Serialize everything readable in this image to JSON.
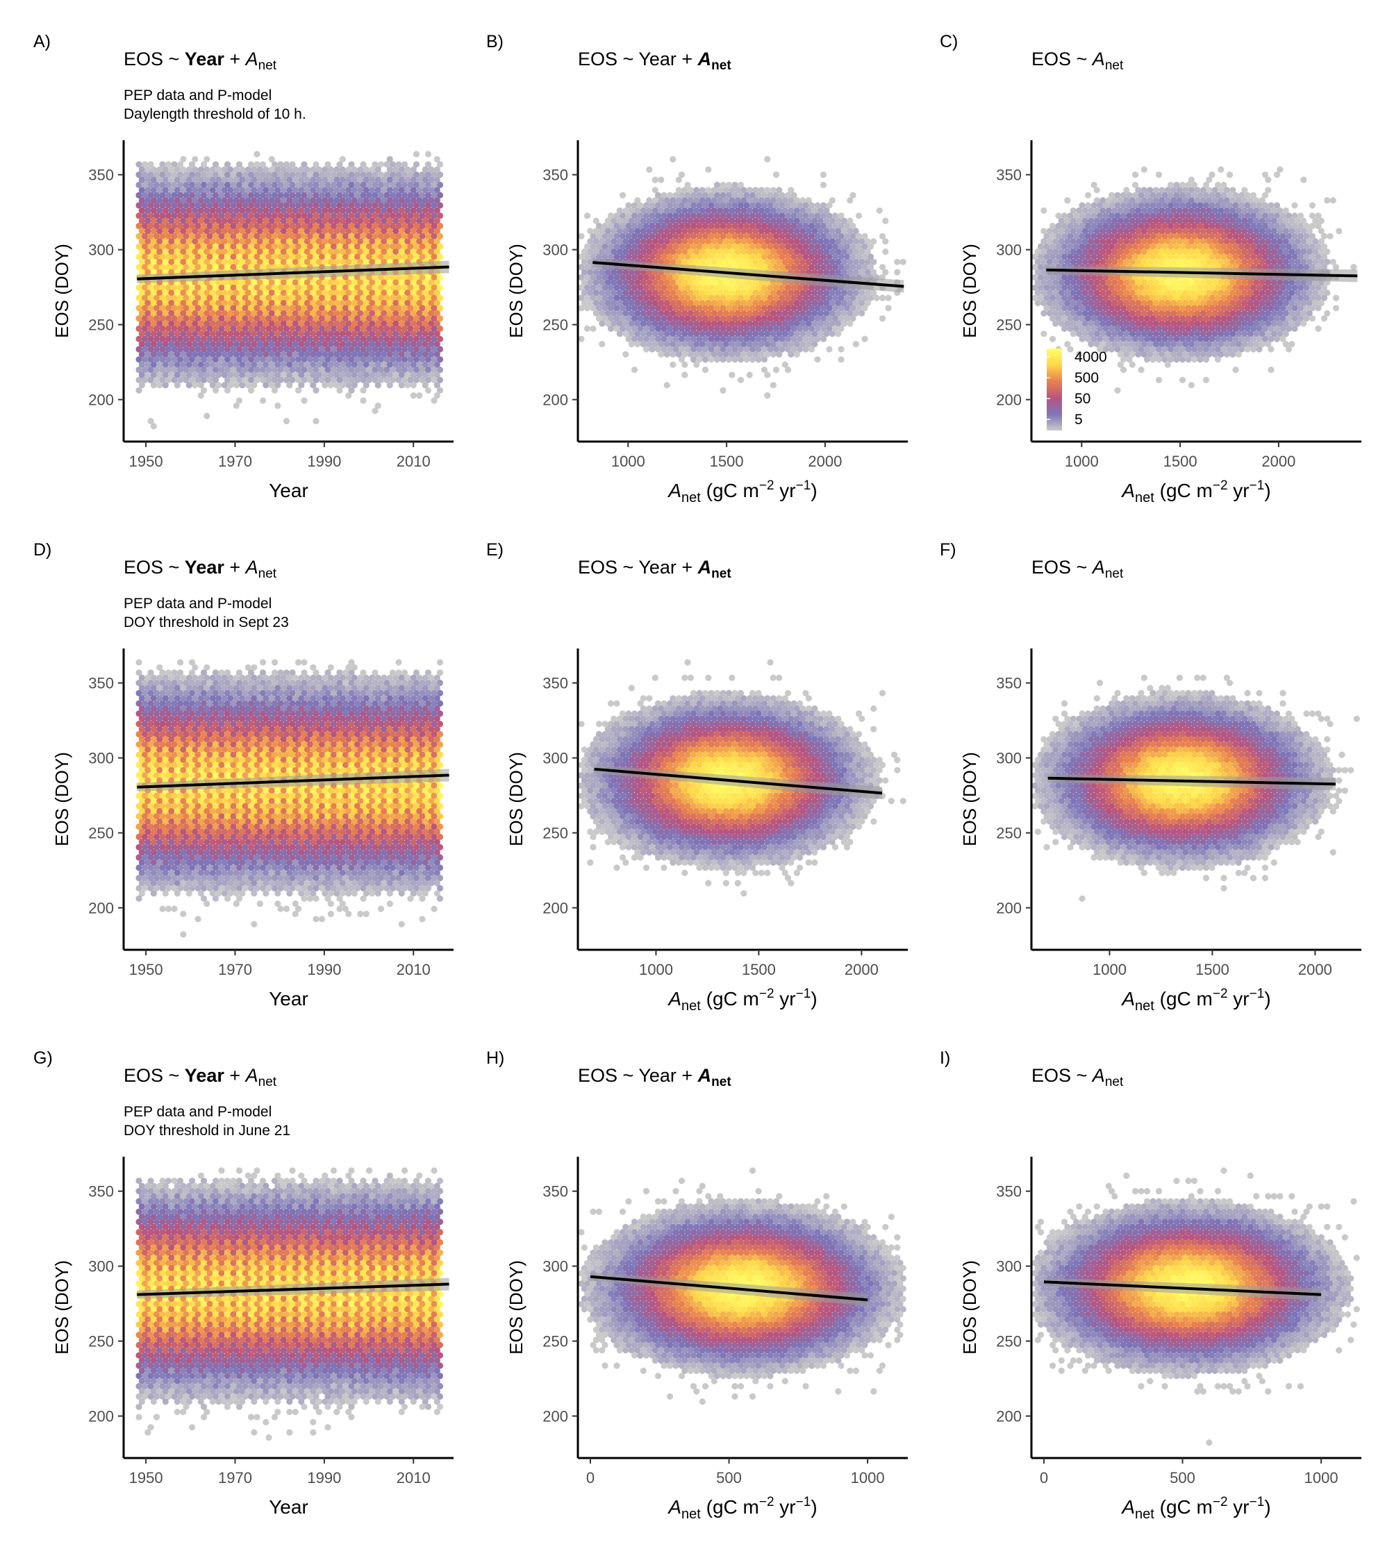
{
  "figure": {
    "colorbar": {
      "labels": [
        "4000",
        "500",
        "50",
        "5"
      ],
      "colors": [
        "#c9c9c9",
        "#7d75b8",
        "#b9547e",
        "#e9814f",
        "#ffd84a",
        "#ffff66"
      ]
    }
  },
  "chart_data": [
    {
      "panel": "A)",
      "type": "scatter",
      "render": "hexbin-density",
      "title": {
        "prefix": "EOS ~ ",
        "t1": "Year",
        "t1_bold": true,
        "mid": " + ",
        "t2": "A",
        "t2_sub": "net",
        "t2_bold": false
      },
      "subtitle": [
        "PEP data and P-model",
        "Daylength threshold of 10 h."
      ],
      "xlabel": "Year",
      "ylabel": "EOS (DOY)",
      "x_ticks": [
        1950,
        1970,
        1990,
        2010
      ],
      "y_ticks": [
        200,
        250,
        300,
        350
      ],
      "xlim": [
        1945,
        2019
      ],
      "ylim": [
        172,
        373
      ],
      "cloud": {
        "center": [
          1983,
          283
        ],
        "spread": [
          18,
          26
        ],
        "x_range": [
          1948,
          2016
        ]
      },
      "fit_line": {
        "x": [
          1948,
          2018
        ],
        "y": [
          280.5,
          288.5
        ]
      },
      "colorbar": false
    },
    {
      "panel": "B)",
      "type": "scatter",
      "render": "hexbin-density",
      "title": {
        "prefix": "EOS ~ ",
        "t1": "Year",
        "t1_bold": false,
        "mid": " + ",
        "t2": "A",
        "t2_sub": "net",
        "t2_bold": true
      },
      "subtitle": [],
      "xlabel": "A_net (gC m^-2 yr^-1)",
      "ylabel": "EOS (DOY)",
      "x_ticks": [
        1000,
        1500,
        2000
      ],
      "y_ticks": [
        200,
        250,
        300,
        350
      ],
      "xlim": [
        745,
        2420
      ],
      "ylim": [
        172,
        373
      ],
      "cloud": {
        "center": [
          1500,
          284
        ],
        "spread": [
          260,
          20
        ],
        "x_range": [
          800,
          2390
        ]
      },
      "fit_line": {
        "x": [
          820,
          2400
        ],
        "y": [
          291.5,
          275.5
        ]
      },
      "colorbar": false
    },
    {
      "panel": "C)",
      "type": "scatter",
      "render": "hexbin-density",
      "title": {
        "prefix": "EOS ~ ",
        "t1": "",
        "t1_bold": false,
        "mid": "",
        "t2": "A",
        "t2_sub": "net",
        "t2_bold": false
      },
      "subtitle": [],
      "xlabel": "A_net (gC m^-2 yr^-1)",
      "ylabel": "EOS (DOY)",
      "x_ticks": [
        1000,
        1500,
        2000
      ],
      "y_ticks": [
        200,
        250,
        300,
        350
      ],
      "xlim": [
        745,
        2420
      ],
      "ylim": [
        172,
        373
      ],
      "cloud": {
        "center": [
          1500,
          284
        ],
        "spread": [
          260,
          20
        ],
        "x_range": [
          800,
          2390
        ]
      },
      "fit_line": {
        "x": [
          820,
          2400
        ],
        "y": [
          286.5,
          282.5
        ]
      },
      "colorbar": true
    },
    {
      "panel": "D)",
      "type": "scatter",
      "render": "hexbin-density",
      "title": {
        "prefix": "EOS ~ ",
        "t1": "Year",
        "t1_bold": true,
        "mid": " + ",
        "t2": "A",
        "t2_sub": "net",
        "t2_bold": false
      },
      "subtitle": [
        "PEP data and P-model",
        "DOY threshold in Sept 23"
      ],
      "xlabel": "Year",
      "ylabel": "EOS (DOY)",
      "x_ticks": [
        1950,
        1970,
        1990,
        2010
      ],
      "y_ticks": [
        200,
        250,
        300,
        350
      ],
      "xlim": [
        1945,
        2019
      ],
      "ylim": [
        172,
        373
      ],
      "cloud": {
        "center": [
          1983,
          283
        ],
        "spread": [
          18,
          26
        ],
        "x_range": [
          1948,
          2016
        ]
      },
      "fit_line": {
        "x": [
          1948,
          2018
        ],
        "y": [
          280.5,
          288.5
        ]
      },
      "colorbar": false
    },
    {
      "panel": "E)",
      "type": "scatter",
      "render": "hexbin-density",
      "title": {
        "prefix": "EOS ~ ",
        "t1": "Year",
        "t1_bold": false,
        "mid": " + ",
        "t2": "A",
        "t2_sub": "net",
        "t2_bold": true
      },
      "subtitle": [],
      "xlabel": "A_net (gC m^-2 yr^-1)",
      "ylabel": "EOS (DOY)",
      "x_ticks": [
        1000,
        1500,
        2000
      ],
      "y_ticks": [
        200,
        250,
        300,
        350
      ],
      "xlim": [
        620,
        2225
      ],
      "ylim": [
        172,
        373
      ],
      "cloud": {
        "center": [
          1350,
          285
        ],
        "spread": [
          250,
          20
        ],
        "x_range": [
          680,
          2100
        ]
      },
      "fit_line": {
        "x": [
          700,
          2100
        ],
        "y": [
          292.5,
          276.5
        ]
      },
      "colorbar": false
    },
    {
      "panel": "F)",
      "type": "scatter",
      "render": "hexbin-density",
      "title": {
        "prefix": "EOS ~ ",
        "t1": "",
        "t1_bold": false,
        "mid": "",
        "t2": "A",
        "t2_sub": "net",
        "t2_bold": false
      },
      "subtitle": [],
      "xlabel": "A_net (gC m^-2 yr^-1)",
      "ylabel": "EOS (DOY)",
      "x_ticks": [
        1000,
        1500,
        2000
      ],
      "y_ticks": [
        200,
        250,
        300,
        350
      ],
      "xlim": [
        620,
        2225
      ],
      "ylim": [
        172,
        373
      ],
      "cloud": {
        "center": [
          1350,
          285
        ],
        "spread": [
          250,
          20
        ],
        "x_range": [
          680,
          2100
        ]
      },
      "fit_line": {
        "x": [
          700,
          2100
        ],
        "y": [
          286.5,
          282.5
        ]
      },
      "colorbar": false
    },
    {
      "panel": "G)",
      "type": "scatter",
      "render": "hexbin-density",
      "title": {
        "prefix": "EOS ~ ",
        "t1": "Year",
        "t1_bold": true,
        "mid": " + ",
        "t2": "A",
        "t2_sub": "net",
        "t2_bold": false
      },
      "subtitle": [
        "PEP data and P-model",
        "DOY threshold in June 21"
      ],
      "xlabel": "Year",
      "ylabel": "EOS (DOY)",
      "x_ticks": [
        1950,
        1970,
        1990,
        2010
      ],
      "y_ticks": [
        200,
        250,
        300,
        350
      ],
      "xlim": [
        1945,
        2019
      ],
      "ylim": [
        172,
        373
      ],
      "cloud": {
        "center": [
          1983,
          283
        ],
        "spread": [
          18,
          26
        ],
        "x_range": [
          1948,
          2016
        ]
      },
      "fit_line": {
        "x": [
          1948,
          2018
        ],
        "y": [
          281,
          288
        ]
      },
      "colorbar": false
    },
    {
      "panel": "H)",
      "type": "scatter",
      "render": "hexbin-density",
      "title": {
        "prefix": "EOS ~ ",
        "t1": "Year",
        "t1_bold": false,
        "mid": " + ",
        "t2": "A",
        "t2_sub": "net",
        "t2_bold": true
      },
      "subtitle": [],
      "xlabel": "A_net (gC m^-2 yr^-1)",
      "ylabel": "EOS (DOY)",
      "x_ticks": [
        0,
        500,
        1000
      ],
      "y_ticks": [
        200,
        250,
        300,
        350
      ],
      "xlim": [
        -45,
        1145
      ],
      "ylim": [
        172,
        373
      ],
      "cloud": {
        "center": [
          550,
          285
        ],
        "spread": [
          200,
          20
        ],
        "x_range": [
          0,
          1100
        ]
      },
      "fit_line": {
        "x": [
          0,
          1000
        ],
        "y": [
          293,
          277.5
        ]
      },
      "colorbar": false
    },
    {
      "panel": "I)",
      "type": "scatter",
      "render": "hexbin-density",
      "title": {
        "prefix": "EOS ~ ",
        "t1": "",
        "t1_bold": false,
        "mid": "",
        "t2": "A",
        "t2_sub": "net",
        "t2_bold": false
      },
      "subtitle": [],
      "xlabel": "A_net (gC m^-2 yr^-1)",
      "ylabel": "EOS (DOY)",
      "x_ticks": [
        0,
        500,
        1000
      ],
      "y_ticks": [
        200,
        250,
        300,
        350
      ],
      "xlim": [
        -45,
        1145
      ],
      "ylim": [
        172,
        373
      ],
      "cloud": {
        "center": [
          520,
          286
        ],
        "spread": [
          200,
          20
        ],
        "x_range": [
          0,
          1100
        ]
      },
      "fit_line": {
        "x": [
          0,
          1000
        ],
        "y": [
          289.5,
          281
        ]
      },
      "colorbar": false
    }
  ]
}
